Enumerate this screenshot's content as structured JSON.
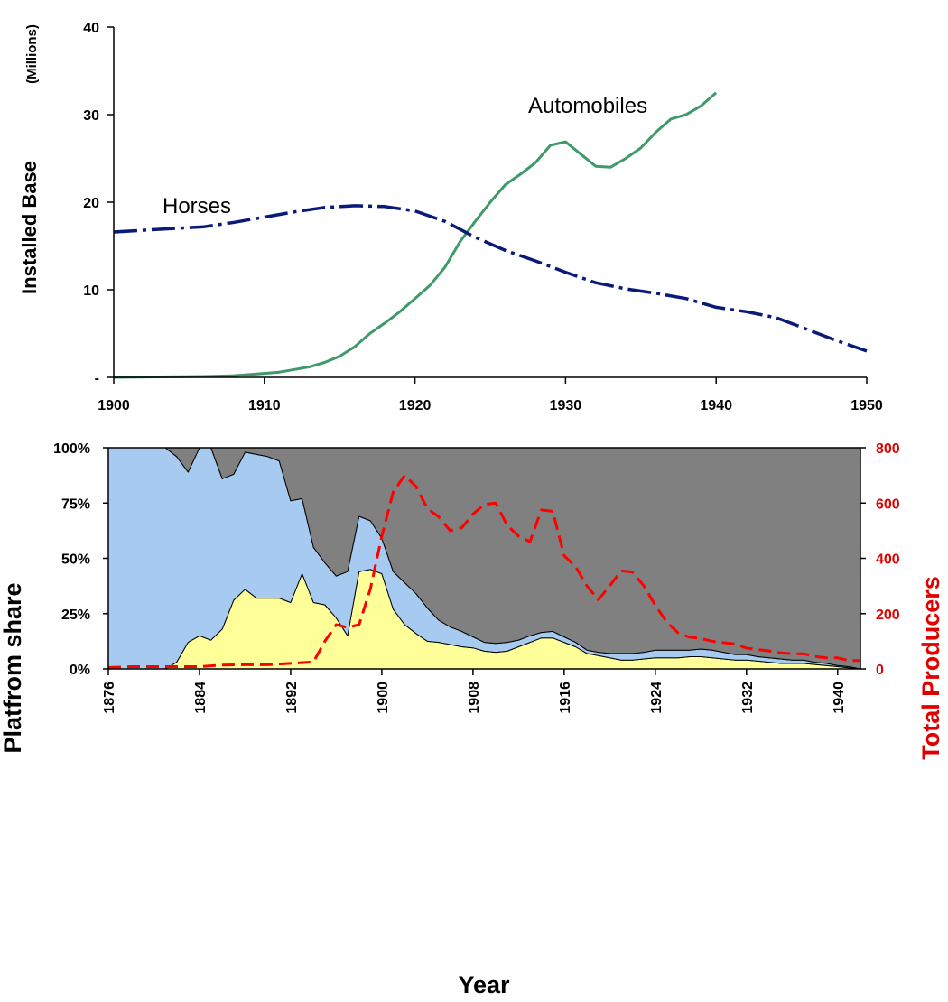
{
  "chart_data": [
    {
      "type": "line",
      "ylabel": "Installed Base",
      "y_unit": "(Millions)",
      "xlim": [
        1900,
        1950
      ],
      "ylim": [
        0,
        40
      ],
      "x_ticks": [
        "1900",
        "1910",
        "1920",
        "1930",
        "1940",
        "1950"
      ],
      "y_ticks": [
        "-",
        "10",
        "20",
        "30",
        "40"
      ],
      "grid": false,
      "series": [
        {
          "name": "Automobiles",
          "color": "#3e9a6a",
          "style": "solid",
          "x": [
            1900,
            1903,
            1906,
            1908,
            1910,
            1911,
            1912,
            1913,
            1914,
            1915,
            1916,
            1917,
            1918,
            1919,
            1920,
            1921,
            1922,
            1923,
            1924,
            1925,
            1926,
            1927,
            1928,
            1929,
            1930,
            1931,
            1932,
            1933,
            1934,
            1935,
            1936,
            1937,
            1938,
            1939,
            1940
          ],
          "y": [
            0.0,
            0.05,
            0.1,
            0.2,
            0.45,
            0.6,
            0.9,
            1.2,
            1.7,
            2.4,
            3.5,
            5.0,
            6.2,
            7.5,
            9.0,
            10.5,
            12.6,
            15.5,
            17.8,
            20.0,
            22.0,
            23.2,
            24.5,
            26.5,
            26.9,
            25.5,
            24.1,
            24.0,
            25.0,
            26.2,
            28.0,
            29.5,
            30.0,
            31.0,
            32.5
          ]
        },
        {
          "name": "Horses",
          "color": "#0a1a78",
          "style": "dashdot",
          "x": [
            1900,
            1902,
            1904,
            1906,
            1908,
            1910,
            1912,
            1914,
            1916,
            1918,
            1920,
            1922,
            1924,
            1926,
            1928,
            1930,
            1932,
            1934,
            1936,
            1938,
            1940,
            1942,
            1944,
            1946,
            1948,
            1950
          ],
          "y": [
            16.6,
            16.8,
            17.0,
            17.2,
            17.7,
            18.3,
            18.9,
            19.4,
            19.6,
            19.5,
            19.0,
            17.8,
            16.0,
            14.5,
            13.3,
            12.0,
            10.8,
            10.1,
            9.6,
            9.0,
            8.0,
            7.5,
            6.8,
            5.5,
            4.2,
            3.0
          ]
        }
      ]
    },
    {
      "type": "area",
      "stacked": "percent",
      "xlabel": "Year",
      "ylabel": "Platfrom share",
      "y2label": "Total Producers",
      "xlim": [
        1876,
        1942
      ],
      "ylim": [
        0,
        100
      ],
      "y2lim": [
        0,
        800
      ],
      "x_ticks": [
        "1876",
        "1884",
        "1892",
        "1900",
        "1908",
        "1916",
        "1924",
        "1932",
        "1940"
      ],
      "y_ticks": [
        "0%",
        "25%",
        "50%",
        "75%",
        "100%"
      ],
      "y2_ticks": [
        "0",
        "200",
        "400",
        "600",
        "800"
      ],
      "grid": false,
      "x": [
        1876,
        1878,
        1880,
        1881,
        1882,
        1883,
        1884,
        1885,
        1886,
        1887,
        1888,
        1889,
        1890,
        1891,
        1892,
        1893,
        1894,
        1895,
        1896,
        1897,
        1898,
        1899,
        1900,
        1901,
        1902,
        1903,
        1904,
        1905,
        1906,
        1907,
        1908,
        1909,
        1910,
        1911,
        1912,
        1913,
        1914,
        1915,
        1916,
        1917,
        1918,
        1919,
        1920,
        1921,
        1922,
        1923,
        1924,
        1925,
        1926,
        1927,
        1928,
        1929,
        1930,
        1931,
        1932,
        1933,
        1934,
        1935,
        1936,
        1937,
        1938,
        1939,
        1940,
        1941,
        1942
      ],
      "series": [
        {
          "name": "",
          "color": "#ffff99",
          "values": [
            0,
            0,
            0,
            0,
            3,
            12,
            15,
            13,
            18,
            31,
            36,
            32,
            32,
            32,
            30,
            43,
            30,
            29,
            23,
            15,
            44,
            45,
            43,
            27,
            20,
            16,
            12.5,
            12,
            11,
            10,
            9.5,
            8,
            7.5,
            8,
            10,
            12,
            14,
            14,
            12,
            10,
            7,
            6,
            5,
            4,
            4,
            4.5,
            5,
            5,
            5,
            5.5,
            5.5,
            5,
            4.5,
            4,
            4,
            3.5,
            3,
            2.5,
            2.5,
            2.5,
            2,
            1.5,
            1,
            0.5,
            0
          ]
        },
        {
          "name": "",
          "color": "#a6caf0",
          "values": [
            100,
            100,
            100,
            100,
            93,
            77,
            86,
            87,
            68,
            57,
            62,
            65,
            64,
            62,
            46,
            34,
            25,
            19,
            19,
            29,
            25,
            22,
            16,
            17,
            19,
            18,
            15,
            10,
            8,
            7,
            5,
            4,
            4,
            4,
            3,
            3,
            2.5,
            3,
            2.5,
            2,
            1.5,
            1.5,
            2,
            3,
            3,
            3,
            3.5,
            3.5,
            3.5,
            3,
            3.5,
            3.5,
            3,
            2.5,
            2.5,
            2,
            2,
            2,
            1.5,
            1.5,
            1,
            1,
            0.5,
            0.5,
            0
          ]
        },
        {
          "name": "",
          "color": "#808080",
          "values": [
            0,
            0,
            0,
            0,
            4,
            11,
            0,
            0,
            14,
            12,
            2,
            3,
            4,
            6,
            24,
            23,
            45,
            52,
            58,
            56,
            31,
            33,
            41,
            56,
            61,
            66,
            72.5,
            78,
            81,
            83,
            85.5,
            88,
            88.5,
            88,
            87,
            85,
            83.5,
            83,
            85.5,
            88,
            91.5,
            92.5,
            93,
            93,
            93,
            92.5,
            91.5,
            91.5,
            91.5,
            91.5,
            91,
            91.5,
            92.5,
            93.5,
            93.5,
            94.5,
            95,
            95.5,
            96,
            96,
            97,
            97.5,
            98.5,
            99,
            100
          ]
        }
      ],
      "y2_series": {
        "name": "",
        "color": "#ff0000",
        "style": "dashed",
        "x": [
          1876,
          1878,
          1880,
          1882,
          1884,
          1886,
          1888,
          1890,
          1892,
          1894,
          1895,
          1896,
          1897,
          1898,
          1899,
          1900,
          1901,
          1902,
          1903,
          1904,
          1905,
          1906,
          1907,
          1908,
          1909,
          1910,
          1911,
          1912,
          1913,
          1914,
          1915,
          1916,
          1917,
          1918,
          1919,
          1920,
          1921,
          1922,
          1923,
          1924,
          1925,
          1926,
          1927,
          1928,
          1929,
          1930,
          1931,
          1932,
          1933,
          1934,
          1935,
          1936,
          1937,
          1938,
          1939,
          1940,
          1941,
          1942
        ],
        "y": [
          5,
          8,
          8,
          8,
          8,
          14,
          15,
          15,
          20,
          25,
          100,
          160,
          150,
          160,
          290,
          480,
          640,
          700,
          660,
          580,
          550,
          500,
          510,
          560,
          595,
          600,
          520,
          480,
          460,
          575,
          570,
          410,
          370,
          300,
          250,
          300,
          355,
          350,
          300,
          230,
          170,
          130,
          115,
          110,
          100,
          95,
          90,
          75,
          70,
          65,
          58,
          55,
          55,
          45,
          40,
          40,
          30,
          30
        ]
      }
    }
  ]
}
